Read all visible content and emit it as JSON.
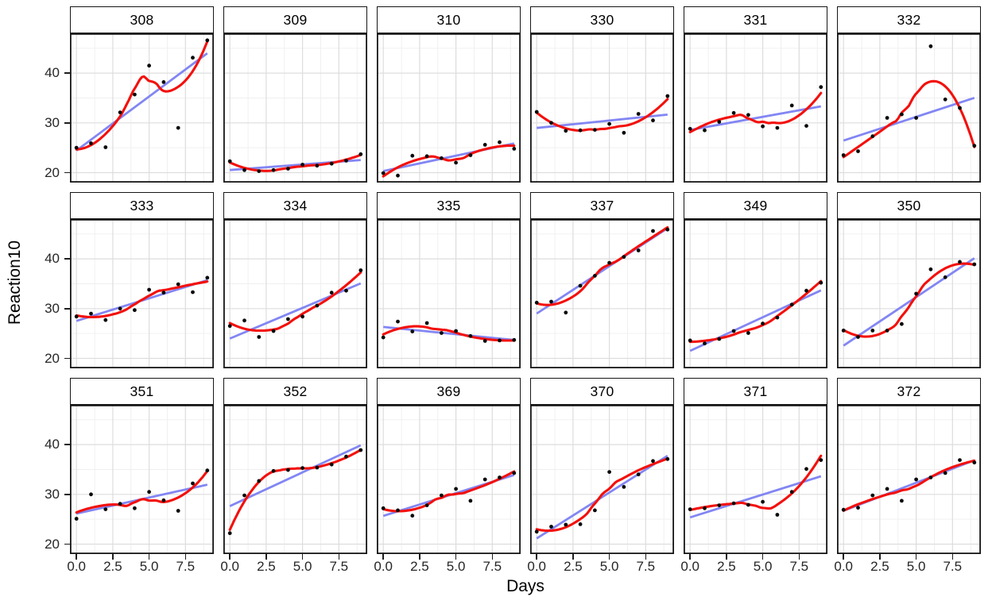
{
  "figure": {
    "x_title": "Days",
    "y_title": "Reaction10"
  },
  "chart_data": {
    "type": "scatter",
    "title": "",
    "xlabel": "Days",
    "ylabel": "Reaction10",
    "legend": "none",
    "grid": "major+minor",
    "facet_layout": {
      "rows": 3,
      "cols": 6
    },
    "x": [
      0,
      1,
      2,
      3,
      4,
      5,
      6,
      7,
      8,
      9
    ],
    "xlim": [
      -0.45,
      9.45
    ],
    "ylim": [
      18,
      48
    ],
    "x_ticks": {
      "values": [
        0,
        2.5,
        5,
        7.5
      ],
      "labels": [
        "0.0",
        "2.5",
        "5.0",
        "7.5"
      ],
      "minor": [
        1.25,
        3.75,
        6.25,
        8.75
      ]
    },
    "y_ticks": {
      "values": [
        20,
        30,
        40
      ],
      "labels": [
        "20",
        "30",
        "40"
      ],
      "minor": [
        25,
        35,
        45
      ]
    },
    "colors": {
      "points": "#0a0a0a",
      "linear_fit": "#8286f3",
      "loess": "#f3100c"
    },
    "smoothers": [
      {
        "name": "linear-fit",
        "color": "#8286f3"
      },
      {
        "name": "loess-smooth",
        "color": "#f3100c",
        "span": 0.75,
        "degree": 2
      }
    ],
    "facets": [
      {
        "label": "308",
        "reaction10": [
          25.0,
          25.9,
          25.1,
          32.1,
          35.7,
          41.5,
          38.2,
          29.0,
          43.1,
          46.6
        ]
      },
      {
        "label": "309",
        "reaction10": [
          22.3,
          20.5,
          20.3,
          20.5,
          20.8,
          21.6,
          21.4,
          21.8,
          22.4,
          23.7
        ]
      },
      {
        "label": "310",
        "reaction10": [
          19.9,
          19.4,
          23.4,
          23.3,
          22.9,
          22.0,
          23.5,
          25.6,
          26.1,
          24.8
        ]
      },
      {
        "label": "330",
        "reaction10": [
          32.2,
          30.0,
          28.4,
          28.5,
          28.6,
          29.8,
          28.0,
          31.8,
          30.5,
          35.4
        ]
      },
      {
        "label": "331",
        "reaction10": [
          28.8,
          28.5,
          30.2,
          32.0,
          31.6,
          29.3,
          29.0,
          33.5,
          29.4,
          37.2
        ]
      },
      {
        "label": "332",
        "reaction10": [
          23.5,
          24.3,
          27.3,
          31.0,
          31.7,
          31.0,
          45.4,
          34.7,
          33.0,
          25.4
        ]
      },
      {
        "label": "333",
        "reaction10": [
          28.4,
          29.0,
          27.7,
          30.0,
          29.7,
          33.8,
          33.2,
          34.9,
          33.3,
          36.2
        ]
      },
      {
        "label": "334",
        "reaction10": [
          26.5,
          27.6,
          24.3,
          25.5,
          27.9,
          28.4,
          30.6,
          33.2,
          33.6,
          37.7
        ]
      },
      {
        "label": "335",
        "reaction10": [
          24.2,
          27.4,
          25.4,
          27.1,
          25.1,
          25.5,
          24.5,
          23.5,
          23.6,
          23.7
        ]
      },
      {
        "label": "337",
        "reaction10": [
          31.2,
          31.4,
          29.2,
          34.6,
          36.6,
          39.2,
          40.4,
          41.7,
          45.6,
          45.9
        ]
      },
      {
        "label": "349",
        "reaction10": [
          23.6,
          23.0,
          23.9,
          25.5,
          25.1,
          27.0,
          28.2,
          30.8,
          33.6,
          35.2
        ]
      },
      {
        "label": "350",
        "reaction10": [
          25.6,
          24.3,
          25.6,
          25.6,
          26.9,
          33.0,
          37.9,
          36.3,
          39.4,
          38.9
        ]
      },
      {
        "label": "351",
        "reaction10": [
          25.1,
          30.0,
          27.0,
          28.1,
          27.2,
          30.5,
          28.8,
          26.7,
          32.2,
          34.8
        ]
      },
      {
        "label": "352",
        "reaction10": [
          22.2,
          29.8,
          32.7,
          34.7,
          34.9,
          35.3,
          35.4,
          36.0,
          37.6,
          38.9
        ]
      },
      {
        "label": "369",
        "reaction10": [
          27.2,
          26.8,
          25.7,
          27.8,
          29.8,
          31.1,
          28.7,
          33.0,
          33.4,
          34.3
        ]
      },
      {
        "label": "370",
        "reaction10": [
          22.5,
          23.5,
          23.9,
          24.0,
          26.8,
          34.5,
          31.5,
          34.0,
          36.7,
          37.1
        ]
      },
      {
        "label": "371",
        "reaction10": [
          27.0,
          27.2,
          27.8,
          28.2,
          27.9,
          28.5,
          25.9,
          30.5,
          35.1,
          36.9
        ]
      },
      {
        "label": "372",
        "reaction10": [
          26.9,
          27.3,
          29.8,
          31.1,
          28.7,
          33.0,
          33.4,
          34.3,
          36.9,
          36.4
        ]
      }
    ]
  }
}
